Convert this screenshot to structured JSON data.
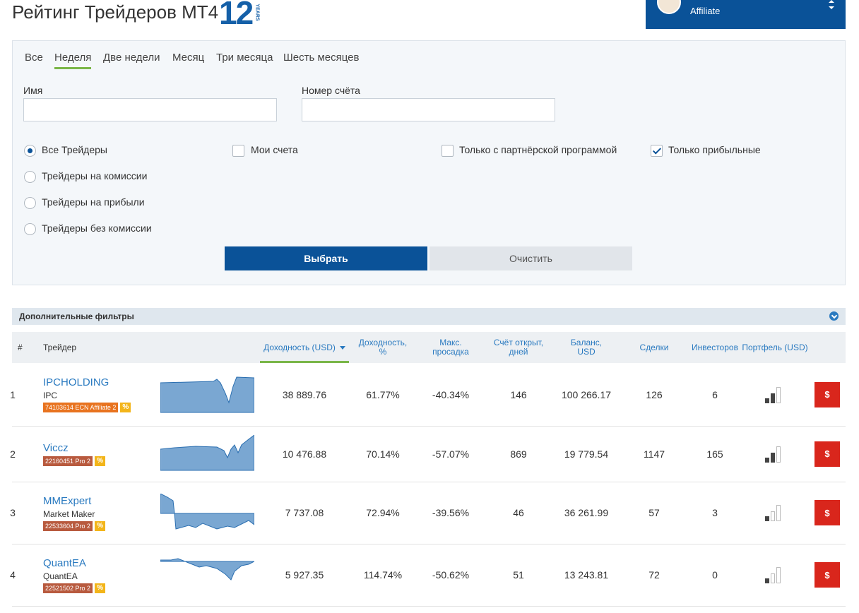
{
  "header": {
    "title": "Рейтинг Трейдеров MT4",
    "logo": "12",
    "logo_badge": "YEARS",
    "user_role": "Affiliate"
  },
  "filters": {
    "tabs": [
      "Все",
      "Неделя",
      "Две недели",
      "Месяц",
      "Три месяца",
      "Шесть месяцев"
    ],
    "active_tab": 1,
    "fields": [
      "Имя",
      "Номер счёта"
    ],
    "radios": [
      "Все Трейдеры",
      "Трейдеры на комиссии",
      "Трейдеры на прибыли",
      "Трейдеры без комиссии"
    ],
    "selected_radio": 0,
    "checkboxes": [
      {
        "label": "Мои счета",
        "checked": false
      },
      {
        "label": "Только с партнёрской программой",
        "checked": false
      },
      {
        "label": "Только прибыльные",
        "checked": true
      }
    ],
    "buttons": {
      "submit": "Выбрать",
      "reset": "Очистить"
    }
  },
  "extra_filters": "Дополнительные фильтры",
  "table": {
    "columns": [
      "#",
      "Трейдер",
      "Доходность (USD)",
      "Доходность, %",
      "Макс. просадка",
      "Счёт открыт, дней",
      "Баланс, USD",
      "Сделки",
      "Инвесторов",
      "Портфель (USD)"
    ],
    "sort_column": 2,
    "rows": [
      {
        "rank": 1,
        "name": "IPCHOLDING",
        "subtitle": "IPC",
        "account": "74103614 ECN Affiliate 2",
        "badge_color": "#e8731f",
        "badge": "%",
        "profit": "38 889.76",
        "gain": "61.77%",
        "drawdown": "-40.34%",
        "days": 146,
        "balance": "100 266.17",
        "trades": 126,
        "investors": 6,
        "action": "$"
      },
      {
        "rank": 2,
        "name": "Viccz",
        "account": "22160451 Pro 2",
        "badge_color": "#b85a3e",
        "badge": "%",
        "profit": "10 476.88",
        "gain": "70.14%",
        "drawdown": "-57.07%",
        "days": 869,
        "balance": "19 779.54",
        "trades": 1147,
        "investors": 165,
        "action": "$"
      },
      {
        "rank": 3,
        "name": "MMExpert",
        "subtitle": "Market Maker",
        "account": "22533604 Pro 2",
        "badge_color": "#b85a3e",
        "badge": "%",
        "profit": "7 737.08",
        "gain": "72.94%",
        "drawdown": "-39.56%",
        "days": 46,
        "balance": "36 261.99",
        "trades": 57,
        "investors": 3,
        "action": "$"
      },
      {
        "rank": 4,
        "name": "QuantEA",
        "subtitle": "QuantEA",
        "account": "22521502 Pro 2",
        "badge_color": "#b85a3e",
        "badge": "%",
        "profit": "5 927.35",
        "gain": "114.74%",
        "drawdown": "-50.62%",
        "days": 51,
        "balance": "13 243.81",
        "trades": 72,
        "investors": 0,
        "action": "$"
      }
    ]
  }
}
